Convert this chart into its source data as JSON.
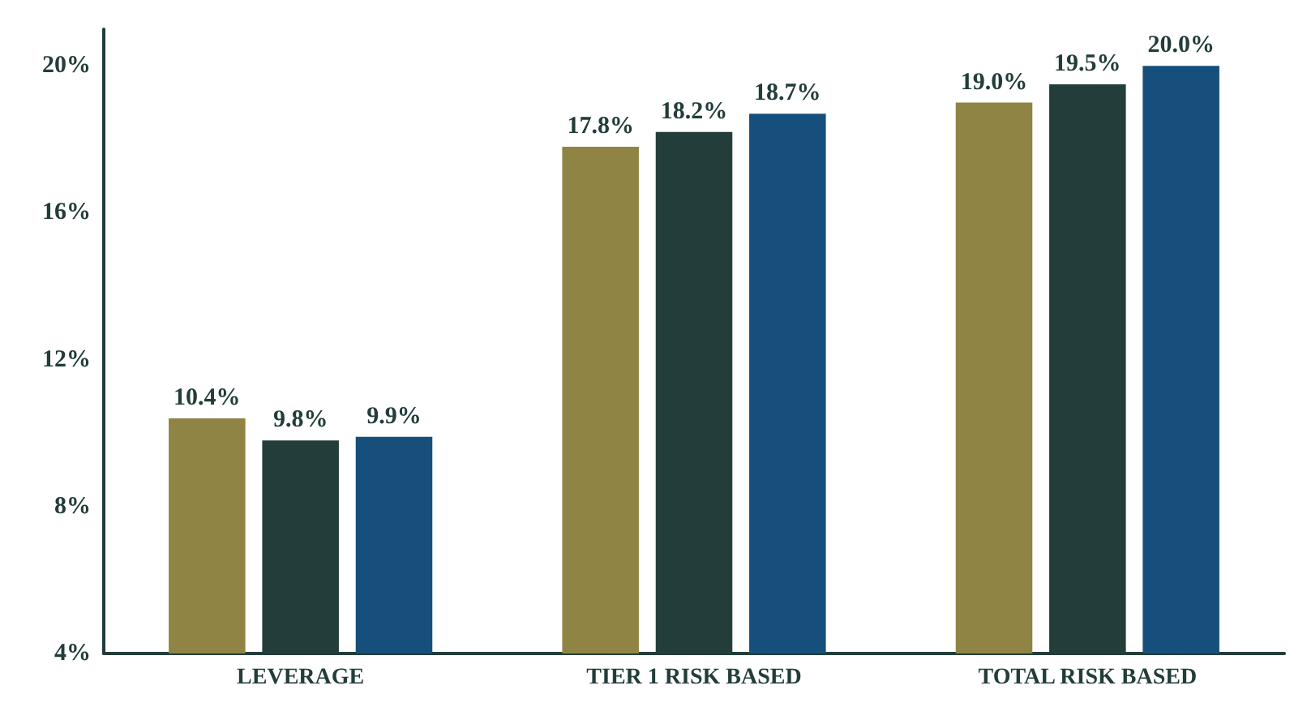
{
  "chart_data": {
    "type": "bar",
    "categories": [
      "LEVERAGE",
      "TIER 1 RISK BASED",
      "TOTAL RISK BASED"
    ],
    "series": [
      {
        "color": "#8f8443",
        "values": [
          10.4,
          17.8,
          19.0
        ],
        "value_labels": [
          "10.4%",
          "17.8%",
          "19.0%"
        ]
      },
      {
        "color": "#223d3a",
        "values": [
          9.8,
          18.2,
          19.5
        ],
        "value_labels": [
          "9.8%",
          "18.2%",
          "19.5%"
        ]
      },
      {
        "color": "#164f7c",
        "values": [
          9.9,
          18.7,
          20.0
        ],
        "value_labels": [
          "9.9%",
          "18.7%",
          "20.0%"
        ]
      }
    ],
    "ylim": [
      4,
      21
    ],
    "yticks": [
      {
        "value": 4,
        "label": "4%"
      },
      {
        "value": 8,
        "label": "8%"
      },
      {
        "value": 12,
        "label": "12%"
      },
      {
        "value": 16,
        "label": "16%"
      },
      {
        "value": 20,
        "label": "20%"
      }
    ],
    "grid": false
  }
}
